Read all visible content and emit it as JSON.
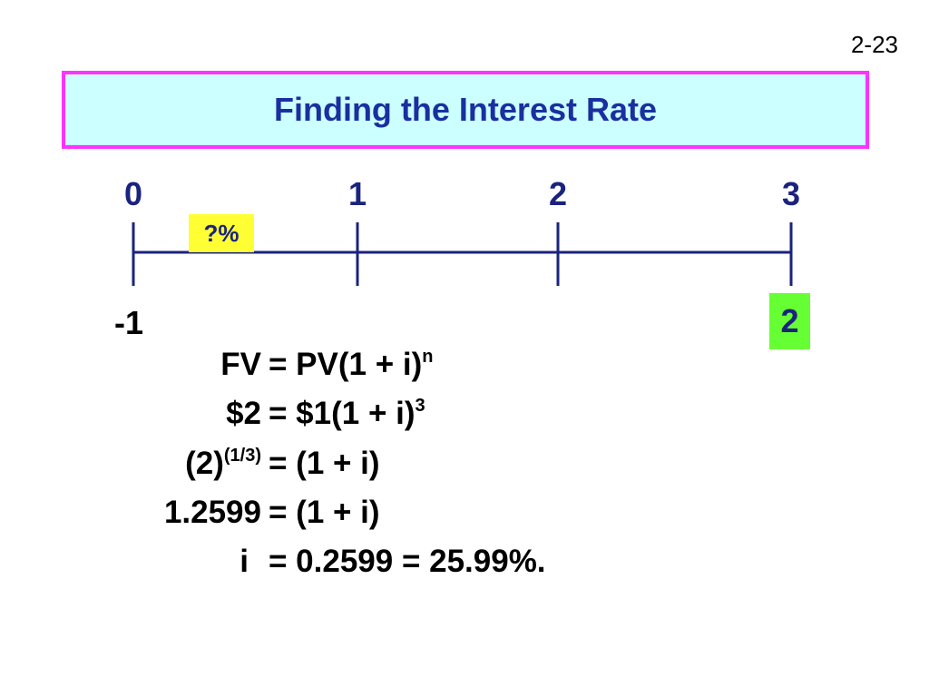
{
  "slide_number": "2-23",
  "title": "Finding the Interest Rate",
  "timeline": {
    "periods": [
      "0",
      "1",
      "2",
      "3"
    ],
    "rate": "?%",
    "cash_flows": {
      "start": "-1",
      "end": "2"
    }
  },
  "equations": [
    {
      "lhs": "FV",
      "rhs": "= PV(1 + i)",
      "rhs_sup": "n"
    },
    {
      "lhs": "$2",
      "rhs": "= $1(1 + i)",
      "rhs_sup": "3"
    },
    {
      "lhs": "(2)",
      "lhs_sup": "(1/3)",
      "rhs": "= (1 + i)"
    },
    {
      "lhs": "1.2599",
      "rhs": "= (1 + i)"
    },
    {
      "lhs": "i",
      "rhs": "= 0.2599 = 25.99%."
    }
  ]
}
